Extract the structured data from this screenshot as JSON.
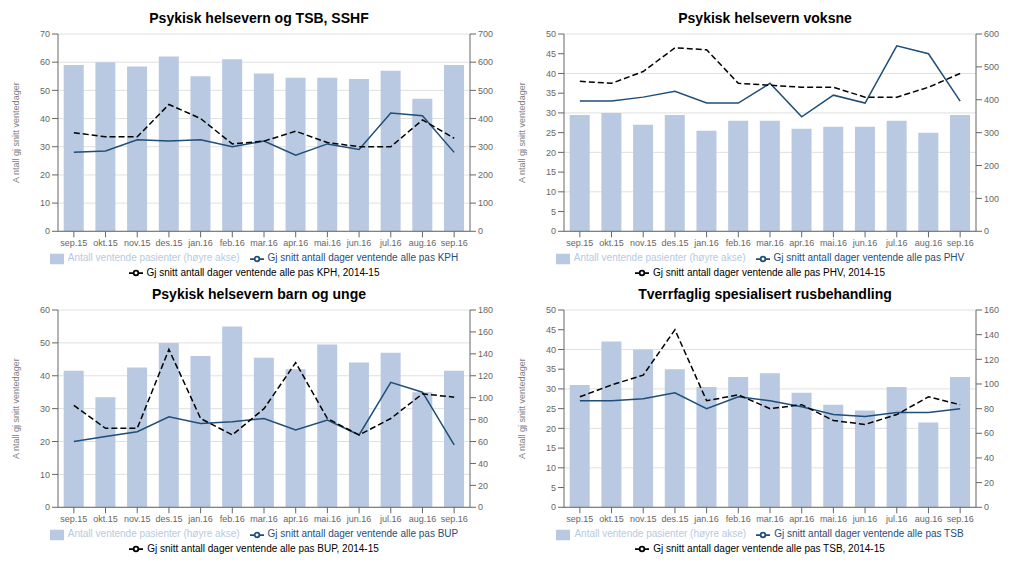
{
  "chart_data": [
    {
      "type": "combo",
      "title": "Psykisk helsevern og TSB, SSHF",
      "y_label": "A ntall gj snitt ventedager",
      "categories": [
        "sep.15",
        "okt.15",
        "nov.15",
        "des.15",
        "jan.16",
        "feb.16",
        "mar.16",
        "apr.16",
        "mai.16",
        "jun.16",
        "jul.16",
        "aug.16",
        "sep.16"
      ],
      "ylim": [
        0,
        70
      ],
      "yticks": [
        0,
        10,
        20,
        30,
        40,
        50,
        60,
        70
      ],
      "y2lim": [
        0,
        700
      ],
      "y2ticks": [
        0,
        100,
        200,
        300,
        400,
        500,
        600,
        700
      ],
      "grid": true,
      "legend": "bottom",
      "series": [
        {
          "name": "Antall ventende pasienter (høyre akse)",
          "type": "bar",
          "axis": "y2",
          "color": "#b8c9e1",
          "values": [
            590,
            600,
            585,
            620,
            550,
            610,
            560,
            545,
            545,
            540,
            570,
            470,
            590
          ]
        },
        {
          "name": "Gj snitt antall dager ventende alle pas KPH",
          "type": "line",
          "color": "#1f4e79",
          "line_style": "solid",
          "values": [
            28,
            28.5,
            32.5,
            32,
            32.5,
            30,
            32,
            27,
            31,
            29,
            42,
            41,
            28
          ]
        },
        {
          "name": "Gj snitt antall dager ventende alle pas KPH, 2014-15",
          "type": "line",
          "color": "#000000",
          "line_style": "dashed",
          "values": [
            35,
            33.5,
            33.5,
            45,
            40,
            31,
            32,
            35.5,
            31.5,
            30,
            30,
            39.5,
            33
          ]
        }
      ]
    },
    {
      "type": "combo",
      "title": "Psykisk helsevern voksne",
      "y_label": "A ntall gj snitt ventedager",
      "categories": [
        "sep.15",
        "okt.15",
        "nov.15",
        "des.15",
        "jan.16",
        "feb.16",
        "mar.16",
        "apr.16",
        "mai.16",
        "jun.16",
        "jul.16",
        "aug.16",
        "sep.16"
      ],
      "ylim": [
        0,
        50
      ],
      "yticks": [
        0,
        5,
        10,
        15,
        20,
        25,
        30,
        35,
        40,
        45,
        50
      ],
      "y2lim": [
        0,
        600
      ],
      "y2ticks": [
        0,
        100,
        200,
        300,
        400,
        500,
        600
      ],
      "grid": true,
      "legend": "bottom",
      "series": [
        {
          "name": "Antall ventende pasienter (høyre akse)",
          "type": "bar",
          "axis": "y2",
          "color": "#b8c9e1",
          "values": [
            354,
            360,
            324,
            354,
            306,
            336,
            336,
            312,
            318,
            318,
            336,
            300,
            354
          ]
        },
        {
          "name": "Gj snitt antall dager ventende alle pas PHV",
          "type": "line",
          "color": "#1f4e79",
          "line_style": "solid",
          "values": [
            33,
            33,
            34,
            35.5,
            32.5,
            32.5,
            37.5,
            29,
            34.5,
            32.5,
            47,
            45,
            33
          ]
        },
        {
          "name": "Gj snitt antall dager ventende alle pas PHV, 2014-15",
          "type": "line",
          "color": "#000000",
          "line_style": "dashed",
          "values": [
            38,
            37.5,
            40.5,
            46.5,
            46,
            37.5,
            37,
            36.5,
            36.5,
            34,
            34,
            36.5,
            40
          ]
        }
      ]
    },
    {
      "type": "combo",
      "title": "Psykisk helsevern barn og unge",
      "y_label": "A ntall gj snitt ventedager",
      "categories": [
        "sep.15",
        "okt.15",
        "nov.15",
        "des.15",
        "jan.16",
        "feb.16",
        "mar.16",
        "apr.16",
        "mai.16",
        "jun.16",
        "jul.16",
        "aug.16",
        "sep.16"
      ],
      "ylim": [
        0,
        60
      ],
      "yticks": [
        0,
        10,
        20,
        30,
        40,
        50,
        60
      ],
      "y2lim": [
        0,
        180
      ],
      "y2ticks": [
        0,
        20,
        40,
        60,
        80,
        100,
        120,
        140,
        160,
        180
      ],
      "grid": true,
      "legend": "bottom",
      "series": [
        {
          "name": "Antall ventende pasienter (høyre akse)",
          "type": "bar",
          "axis": "y2",
          "color": "#b8c9e1",
          "values": [
            124.5,
            100.5,
            127.5,
            150,
            138,
            165,
            136.5,
            126,
            148.5,
            132,
            141,
            105,
            124.5
          ]
        },
        {
          "name": "Gj snitt antall dager ventende alle pas BUP",
          "type": "line",
          "color": "#1f4e79",
          "line_style": "solid",
          "values": [
            20,
            21.5,
            23,
            27.5,
            25.5,
            26,
            27,
            23.5,
            26.5,
            22,
            38,
            35,
            19
          ]
        },
        {
          "name": "Gj snitt antall dager ventende alle pas BUP, 2014-15",
          "type": "line",
          "color": "#000000",
          "line_style": "dashed",
          "values": [
            31,
            24,
            24,
            48,
            27,
            22,
            30,
            44,
            27,
            22,
            27,
            34.5,
            33.5
          ]
        }
      ]
    },
    {
      "type": "combo",
      "title": "Tverrfaglig spesialisert rusbehandling",
      "y_label": "A ntall gj snitt ventedager",
      "categories": [
        "sep.15",
        "okt.15",
        "nov.15",
        "des.15",
        "jan.16",
        "feb.16",
        "mar.16",
        "apr.16",
        "mai.16",
        "jun.16",
        "jul.16",
        "aug.16",
        "sep.16"
      ],
      "ylim": [
        0,
        50
      ],
      "yticks": [
        0,
        5,
        10,
        15,
        20,
        25,
        30,
        35,
        40,
        45,
        50
      ],
      "y2lim": [
        0,
        160
      ],
      "y2ticks": [
        0,
        20,
        40,
        60,
        80,
        100,
        120,
        140,
        160
      ],
      "grid": true,
      "legend": "bottom",
      "series": [
        {
          "name": "Antall ventende pasienter (høyre akse)",
          "type": "bar",
          "axis": "y2",
          "color": "#b8c9e1",
          "values": [
            99.2,
            134.4,
            128,
            112,
            97.6,
            105.6,
            108.8,
            92.8,
            83.2,
            78.4,
            97.6,
            68.8,
            105.6
          ]
        },
        {
          "name": "Gj snitt antall dager ventende alle pas TSB",
          "type": "line",
          "color": "#1f4e79",
          "line_style": "solid",
          "values": [
            27,
            27,
            27.5,
            29,
            25,
            28,
            27,
            25.5,
            23.5,
            23,
            24,
            24,
            25
          ]
        },
        {
          "name": "Gj snitt antall dager ventende alle pas TSB, 2014-15",
          "type": "line",
          "color": "#000000",
          "line_style": "dashed",
          "values": [
            28,
            31,
            33.5,
            45,
            27,
            28.5,
            25,
            26,
            22,
            21,
            23.5,
            28,
            26
          ]
        }
      ]
    }
  ]
}
